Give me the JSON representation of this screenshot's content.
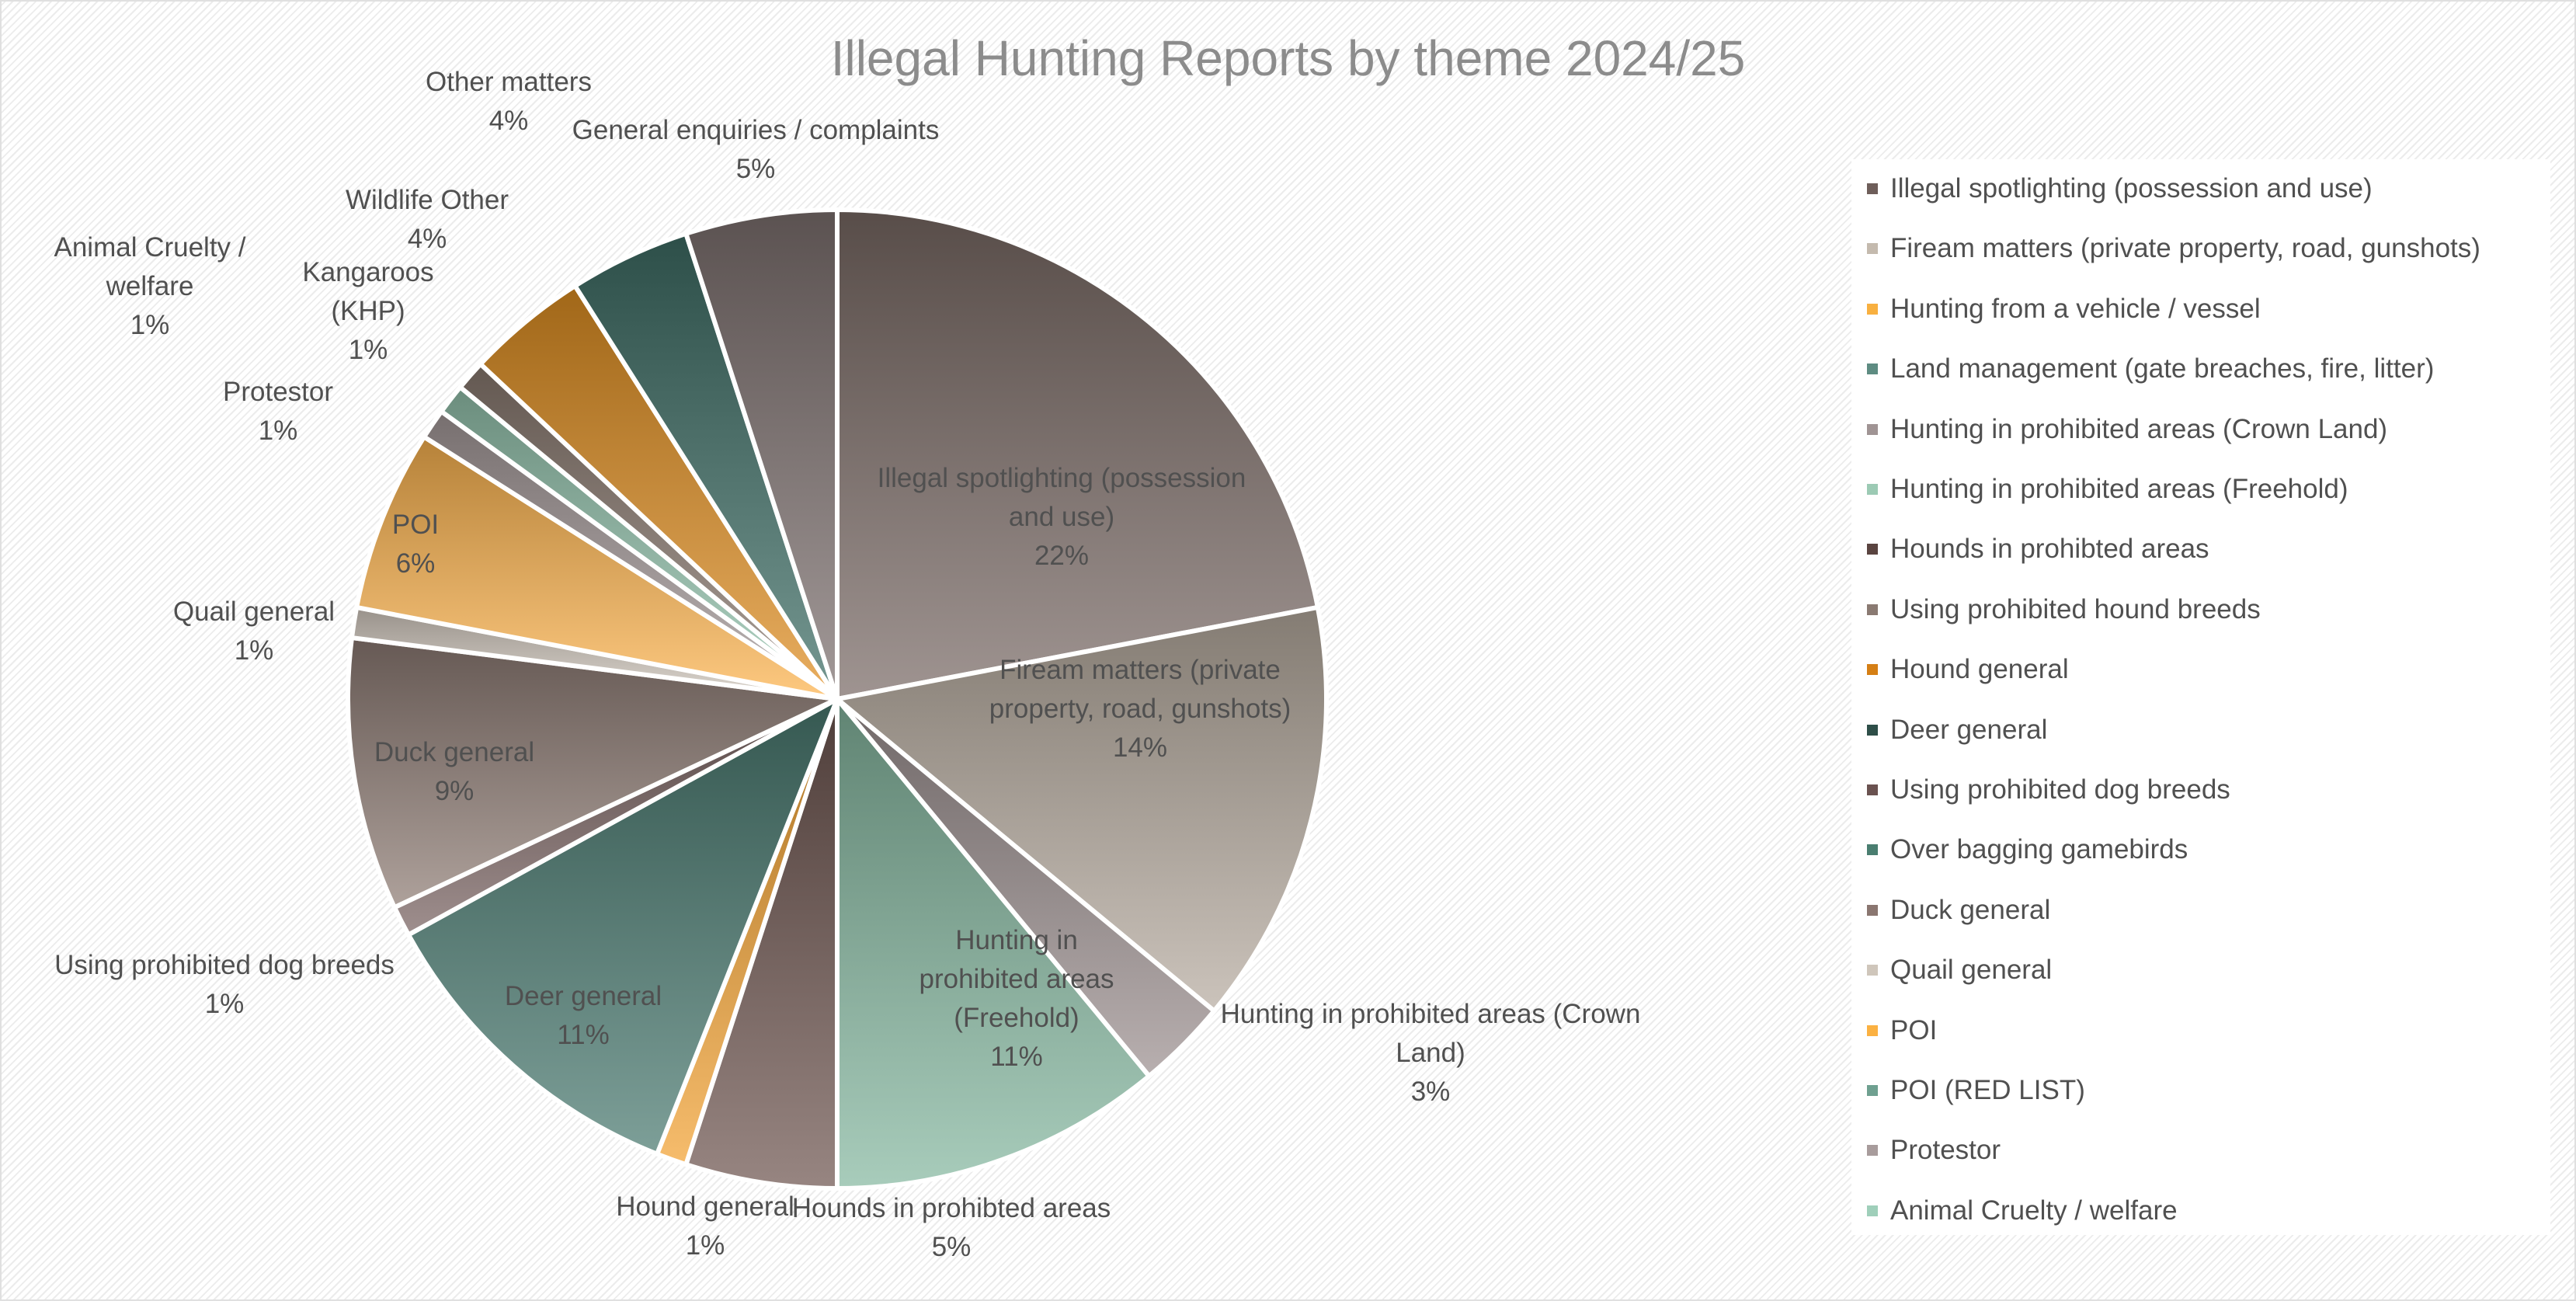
{
  "chart_data": {
    "type": "pie",
    "title": "Illegal Hunting Reports by theme 2024/25",
    "slices": [
      {
        "name": "Illegal spotlighting (possession and use)",
        "value": 22,
        "label_lines": [
          "Illegal spotlighting (possession",
          "and use)",
          "22%"
        ],
        "color": "#7a6b66"
      },
      {
        "name": "Fiream matters (private property, road, gunshots)",
        "value": 14,
        "label_lines": [
          "Fiream matters (private",
          "property, road, gunshots)",
          "14%"
        ],
        "color": "#b7aca0"
      },
      {
        "name": "Hunting in prohibited areas (Crown Land)",
        "value": 3,
        "label_lines": [
          "Hunting in prohibited areas (Crown",
          "Land)",
          "3%"
        ],
        "color": "#9c9090"
      },
      {
        "name": "Hunting in prohibited areas (Freehold)",
        "value": 11,
        "label_lines": [
          "Hunting in",
          "prohibited areas",
          "(Freehold)",
          "11%"
        ],
        "color": "#86b8a0"
      },
      {
        "name": "Hounds in prohibted areas",
        "value": 5,
        "label_lines": [
          "Hounds in prohibted areas",
          "5%"
        ],
        "color": "#6e5650"
      },
      {
        "name": "Hound general",
        "value": 1,
        "label_lines": [
          "Hound general",
          "1%"
        ],
        "color": "#f2a233"
      },
      {
        "name": "Deer general",
        "value": 11,
        "label_lines": [
          "Deer general",
          "11%"
        ],
        "color": "#4a7a70"
      },
      {
        "name": "Using prohibited dog breeds",
        "value": 1,
        "label_lines": [
          "Using prohibited dog breeds",
          "1%"
        ],
        "color": "#7a6462"
      },
      {
        "name": "Duck general",
        "value": 9,
        "label_lines": [
          "Duck general",
          "9%"
        ],
        "color": "#8e7c74"
      },
      {
        "name": "Quail general",
        "value": 1,
        "label_lines": [
          "Quail general",
          "1%"
        ],
        "color": "#d3cabf"
      },
      {
        "name": "POI",
        "value": 6,
        "label_lines": [
          "POI",
          "6%"
        ],
        "color": "#fdb44f"
      },
      {
        "name": "Protestor",
        "value": 1,
        "label_lines": [
          "Protestor",
          "1%"
        ],
        "color": "#a59a9a"
      },
      {
        "name": "Animal Cruelty / welfare",
        "value": 1,
        "label_lines": [
          "Animal Cruelty /",
          "welfare",
          "1%"
        ],
        "color": "#94c4ae"
      },
      {
        "name": "Kangaroos (KHP)",
        "value": 1,
        "label_lines": [
          "Kangaroos",
          "(KHP)",
          "1%"
        ],
        "color": "#8a7a70"
      },
      {
        "name": "Wildlife Other",
        "value": 4,
        "label_lines": [
          "Wildlife Other",
          "4%"
        ],
        "color": "#e08f22"
      },
      {
        "name": "Other matters",
        "value": 4,
        "label_lines": [
          "Other matters",
          "4%"
        ],
        "color": "#3f6e66"
      },
      {
        "name": "General enquiries / complaints",
        "value": 5,
        "label_lines": [
          "General enquiries / complaints",
          "5%"
        ],
        "color": "#7e7270"
      }
    ],
    "legend": {
      "placement": "right",
      "entries": [
        {
          "label": "Illegal spotlighting (possession and use)",
          "color": "#6e5e5a"
        },
        {
          "label": "Fiream matters (private property, road, gunshots)",
          "color": "#c4baae"
        },
        {
          "label": "Hunting from a vehicle / vessel",
          "color": "#f8b040"
        },
        {
          "label": "Land management (gate breaches, fire, litter)",
          "color": "#5e8c82"
        },
        {
          "label": "Hunting in prohibited areas (Crown Land)",
          "color": "#a09494"
        },
        {
          "label": "Hunting in prohibited areas (Freehold)",
          "color": "#9ccab4"
        },
        {
          "label": "Hounds in prohibted areas",
          "color": "#5a4440"
        },
        {
          "label": "Using prohibited hound breeds",
          "color": "#8a7a72"
        },
        {
          "label": "Hound general",
          "color": "#d57f15"
        },
        {
          "label": "Deer general",
          "color": "#2e4e48"
        },
        {
          "label": "Using prohibited dog breeds",
          "color": "#6a5250"
        },
        {
          "label": "Over bagging gamebirds",
          "color": "#4a7e70"
        },
        {
          "label": "Duck general",
          "color": "#8a7670"
        },
        {
          "label": "Quail general",
          "color": "#cfc6bb"
        },
        {
          "label": "POI",
          "color": "#fbb142"
        },
        {
          "label": "POI (RED LIST)",
          "color": "#6fa090"
        },
        {
          "label": "Protestor",
          "color": "#a89c9c"
        },
        {
          "label": "Animal Cruelty / welfare",
          "color": "#9fcfba"
        }
      ]
    }
  }
}
